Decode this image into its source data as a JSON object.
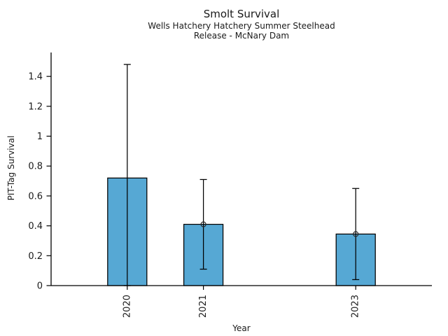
{
  "chart_data": {
    "type": "bar",
    "title": "Smolt Survival",
    "subtitle_lines": [
      "Wells Hatchery Hatchery Summer Steelhead",
      "Release - McNary Dam"
    ],
    "xlabel": "Year",
    "ylabel": "PIT-Tag Survival",
    "categories": [
      "2020",
      "2021",
      "2023"
    ],
    "x_numeric": [
      2020,
      2021,
      2023
    ],
    "values": [
      0.72,
      0.41,
      0.345
    ],
    "error_low": [
      0.0,
      0.11,
      0.04
    ],
    "error_high": [
      1.48,
      0.71,
      0.65
    ],
    "point_marker": [
      false,
      true,
      true
    ],
    "xlim": [
      2019,
      2024
    ],
    "ylim": [
      0,
      1.56
    ],
    "ytick_values": [
      0,
      0.2,
      0.4,
      0.6,
      0.8,
      1,
      1.2,
      1.4
    ],
    "ytick_labels": [
      "0",
      "0.2",
      "0.4",
      "0.6",
      "0.8",
      "1",
      "1.2",
      "1.4"
    ],
    "grid": false,
    "legend": "none",
    "bar_color": "#56a8d4",
    "bar_edge_color": "#000000",
    "axis_color": "#000000",
    "text_color": "#1a1a1a"
  }
}
